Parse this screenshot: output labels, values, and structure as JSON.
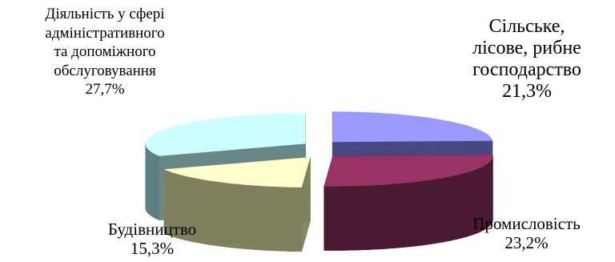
{
  "chart_data": {
    "type": "pie",
    "style": "3d-exploded",
    "slices": [
      {
        "key": "agri",
        "label_lines": [
          "Сільське,",
          "лісове, рибне",
          "господарство"
        ],
        "value_label": "21,3%",
        "value": 21.3,
        "top_color": "#9999FF",
        "side_color": "#3F3F7F"
      },
      {
        "key": "ind",
        "label_lines": [
          "Промисловість"
        ],
        "value_label": "23,2%",
        "value": 23.2,
        "top_color": "#993366",
        "side_color": "#4A1A33"
      },
      {
        "key": "build",
        "label_lines": [
          "Будівництво"
        ],
        "value_label": "15,3%",
        "value": 15.3,
        "top_color": "#FFFFCC",
        "side_color": "#80805F"
      },
      {
        "key": "admin",
        "label_lines": [
          "Діяльність у сфері",
          "адміністративного",
          "та допоміжного",
          "обслуговування"
        ],
        "value_label": "27,7%",
        "value": 27.7,
        "top_color": "#CCFFFF",
        "side_color": "#5F8080"
      }
    ]
  }
}
